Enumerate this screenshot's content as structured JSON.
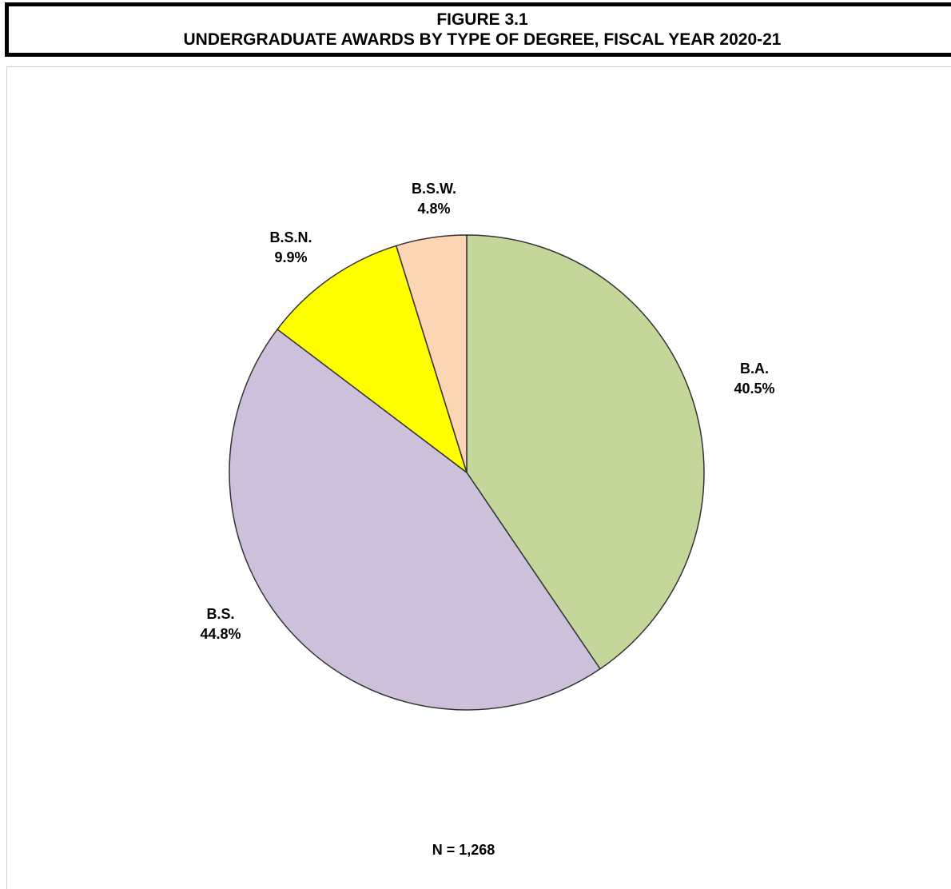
{
  "header": {
    "figure_number": "FIGURE 3.1",
    "title": "UNDERGRADUATE AWARDS BY TYPE OF DEGREE, FISCAL YEAR 2020-21"
  },
  "note": "N = 1,268",
  "chart_data": {
    "type": "pie",
    "title": "UNDERGRADUATE AWARDS BY TYPE OF DEGREE, FISCAL YEAR 2020-21",
    "legend": "none",
    "slices": [
      {
        "label": "B.A.",
        "value": 40.5,
        "value_label": "40.5%",
        "color": "#C4D79B"
      },
      {
        "label": "B.S.",
        "value": 44.8,
        "value_label": "44.8%",
        "color": "#CCC0DA"
      },
      {
        "label": "B.S.N.",
        "value": 9.9,
        "value_label": "9.9%",
        "color": "#FFFF00"
      },
      {
        "label": "B.S.W.",
        "value": 4.8,
        "value_label": "4.8%",
        "color": "#FCD5B4"
      }
    ]
  }
}
